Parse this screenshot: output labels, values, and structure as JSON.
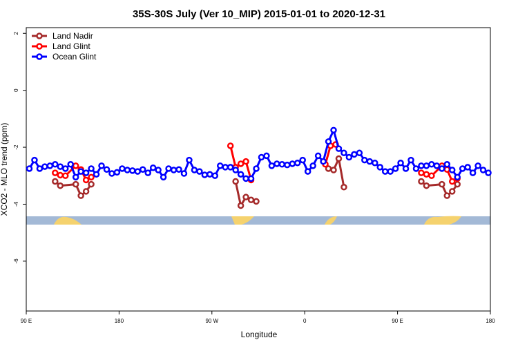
{
  "chart_data": {
    "type": "line",
    "title": "35S-30S July (Ver 10_MIP)   2015-01-01 to 2020-12-31",
    "xlabel": "Longitude",
    "ylabel": "XCO2 - MLO trend (ppm)",
    "xlim": [
      90,
      540
    ],
    "ylim": [
      -7.75,
      2.2
    ],
    "xticks": [
      {
        "value": 90,
        "label": "90 E"
      },
      180,
      {
        "value": 270,
        "label": "90 W"
      },
      {
        "value": 360,
        "label": "0"
      },
      {
        "value": 450,
        "label": "90 E"
      },
      {
        "value": 540,
        "label": "180"
      }
    ],
    "yticks": [
      -6,
      -4,
      -2,
      0,
      2
    ],
    "legend": "top-left",
    "series": [
      {
        "name": "Land Nadir",
        "color": "#a52a2a",
        "x": [
          118,
          123,
          138,
          143,
          148,
          153,
          158,
          293,
          298,
          303,
          308,
          313,
          318,
          383,
          388,
          393,
          398,
          403,
          473,
          478,
          493,
          498,
          503,
          508
        ],
        "values": [
          -3.2,
          -3.35,
          -3.3,
          -3.7,
          -3.55,
          -3.3,
          null,
          -3.2,
          -4.05,
          -3.75,
          -3.85,
          -3.9,
          null,
          -2.75,
          -2.8,
          -2.4,
          -3.4,
          null,
          -3.2,
          -3.35,
          -3.3,
          -3.7,
          -3.55,
          -3.3
        ]
      },
      {
        "name": "Land Glint",
        "color": "#ff0000",
        "x": [
          118,
          123,
          128,
          138,
          143,
          148,
          153,
          158,
          288,
          293,
          298,
          303,
          308,
          313,
          380,
          385,
          390,
          395,
          473,
          478,
          483,
          493,
          498,
          503,
          508
        ],
        "values": [
          -2.9,
          -2.98,
          -3.0,
          -2.65,
          -2.78,
          -3.15,
          -3.05,
          null,
          -1.95,
          -2.7,
          -2.58,
          -2.5,
          -3.15,
          null,
          -2.6,
          -1.95,
          -1.9,
          null,
          -2.9,
          -2.95,
          -3.0,
          -2.65,
          -2.78,
          -3.2,
          -3.1
        ]
      },
      {
        "name": "Ocean Glint",
        "color": "#0000ff",
        "x": [
          93,
          98,
          103,
          108,
          113,
          118,
          123,
          128,
          133,
          138,
          143,
          148,
          153,
          158,
          163,
          168,
          173,
          178,
          183,
          188,
          193,
          198,
          203,
          208,
          213,
          218,
          223,
          228,
          233,
          238,
          243,
          248,
          253,
          258,
          263,
          268,
          273,
          278,
          283,
          288,
          293,
          298,
          303,
          308,
          313,
          318,
          323,
          328,
          333,
          338,
          343,
          348,
          353,
          358,
          363,
          368,
          373,
          378,
          383,
          388,
          393,
          398,
          403,
          408,
          413,
          418,
          423,
          428,
          433,
          438,
          443,
          448,
          453,
          458,
          463,
          468,
          473,
          478,
          483,
          488,
          493,
          498,
          503,
          508,
          513,
          518,
          523,
          528,
          533,
          538
        ],
        "values": [
          -2.75,
          -2.45,
          -2.75,
          -2.68,
          -2.65,
          -2.6,
          -2.68,
          -2.75,
          -2.6,
          -3.05,
          -2.85,
          -2.9,
          -2.75,
          -2.95,
          -2.65,
          -2.78,
          -2.92,
          -2.88,
          -2.75,
          -2.8,
          -2.82,
          -2.85,
          -2.78,
          -2.9,
          -2.72,
          -2.8,
          -3.05,
          -2.75,
          -2.8,
          -2.78,
          -2.92,
          -2.45,
          -2.8,
          -2.85,
          -2.97,
          -2.95,
          -3.0,
          -2.65,
          -2.7,
          -2.7,
          -2.8,
          -2.95,
          -3.1,
          -3.1,
          -2.75,
          -2.35,
          -2.3,
          -2.65,
          -2.58,
          -2.6,
          -2.62,
          -2.58,
          -2.55,
          -2.45,
          -2.85,
          -2.65,
          -2.3,
          -2.5,
          -1.8,
          -1.4,
          -2.05,
          -2.2,
          -2.35,
          -2.25,
          -2.2,
          -2.45,
          -2.5,
          -2.55,
          -2.7,
          -2.85,
          -2.85,
          -2.75,
          -2.55,
          -2.75,
          -2.45,
          -2.75,
          -2.65,
          -2.65,
          -2.6,
          -2.65,
          -2.75,
          -2.6,
          -2.8,
          -3.05,
          -2.75,
          -2.7,
          -2.9,
          -2.65,
          -2.8,
          -2.9
        ]
      }
    ]
  }
}
